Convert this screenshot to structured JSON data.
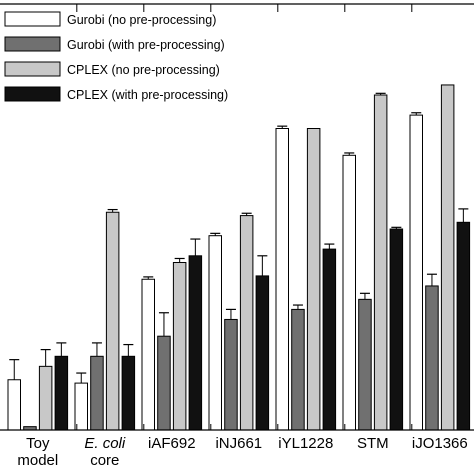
{
  "chart_data": {
    "type": "bar",
    "title": "",
    "xlabel": "",
    "ylabel": "",
    "ylim": [
      0,
      100
    ],
    "grid": false,
    "legend_position": "top-left",
    "categories": [
      {
        "lines": [
          "Toy",
          "model"
        ],
        "italic_first": false
      },
      {
        "lines": [
          "E. coli",
          "core"
        ],
        "italic_first": true
      },
      {
        "lines": [
          "iAF692"
        ],
        "italic_first": false
      },
      {
        "lines": [
          "iNJ661"
        ],
        "italic_first": false
      },
      {
        "lines": [
          "iYL1228"
        ],
        "italic_first": false
      },
      {
        "lines": [
          "STM"
        ],
        "italic_first": false
      },
      {
        "lines": [
          "iJO1366"
        ],
        "italic_first": false
      }
    ],
    "series": [
      {
        "name": "Gurobi (no pre-processing)",
        "color": "#ffffff",
        "values": [
          15,
          14,
          45,
          58,
          90,
          82,
          94
        ],
        "errors": [
          6,
          3,
          0.7,
          0.7,
          0.7,
          0.7,
          0.7
        ]
      },
      {
        "name": "Gurobi (with pre-processing)",
        "color": "#707070",
        "values": [
          1,
          22,
          28,
          33,
          36,
          39,
          43
        ],
        "errors": [
          0,
          4,
          7,
          3,
          1.3,
          1.8,
          3.5
        ]
      },
      {
        "name": "CPLEX (no pre-processing)",
        "color": "#c8c8c8",
        "values": [
          19,
          65,
          50,
          64,
          90,
          100,
          103
        ],
        "errors": [
          5,
          0.8,
          1.2,
          0.7,
          0,
          0.5,
          0
        ]
      },
      {
        "name": "CPLEX (with pre-processing)",
        "color": "#111111",
        "values": [
          22,
          22,
          52,
          46,
          54,
          60,
          62
        ],
        "errors": [
          4,
          3.5,
          5,
          6,
          1.5,
          0.5,
          4
        ]
      }
    ]
  }
}
